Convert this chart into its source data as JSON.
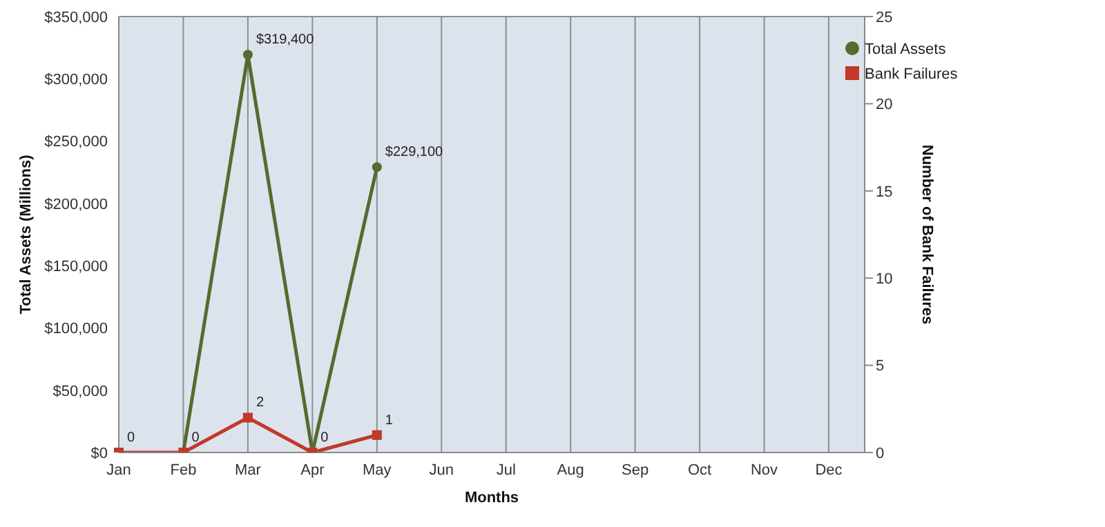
{
  "chart_data": {
    "type": "line",
    "xlabel": "Months",
    "ylabel": "Total Assets (Millions)",
    "y2label": "Number of Bank Failures",
    "categories": [
      "Jan",
      "Feb",
      "Mar",
      "Apr",
      "May",
      "Jun",
      "Jul",
      "Aug",
      "Sep",
      "Oct",
      "Nov",
      "Dec"
    ],
    "series": [
      {
        "name": "Total Assets",
        "color": "#556b2f",
        "marker": "circle",
        "values": [
          null,
          0,
          319400,
          0,
          229100,
          null,
          null,
          null,
          null,
          null,
          null,
          null
        ],
        "value_labels": [
          null,
          null,
          "$319,400",
          null,
          "$229,100",
          null,
          null,
          null,
          null,
          null,
          null,
          null
        ]
      },
      {
        "name": "Bank Failures",
        "color": "#c0392b",
        "marker": "square",
        "axis": "y2",
        "values": [
          0,
          0,
          2,
          0,
          1,
          null,
          null,
          null,
          null,
          null,
          null,
          null
        ],
        "value_labels": [
          "0",
          "0",
          "2",
          "0",
          "1",
          null,
          null,
          null,
          null,
          null,
          null,
          null
        ]
      }
    ],
    "ylim": [
      0,
      350000
    ],
    "yticks": [
      {
        "value": 0,
        "label": "$0"
      },
      {
        "value": 50000,
        "label": "$50,000"
      },
      {
        "value": 100000,
        "label": "$100,000"
      },
      {
        "value": 150000,
        "label": "$150,000"
      },
      {
        "value": 200000,
        "label": "$200,000"
      },
      {
        "value": 250000,
        "label": "$250,000"
      },
      {
        "value": 300000,
        "label": "$300,000"
      },
      {
        "value": 350000,
        "label": "$350,000"
      }
    ],
    "y2lim": [
      0,
      25
    ],
    "y2ticks": [
      0,
      5,
      10,
      15,
      20,
      25
    ],
    "grid": true,
    "legend": "top right"
  }
}
